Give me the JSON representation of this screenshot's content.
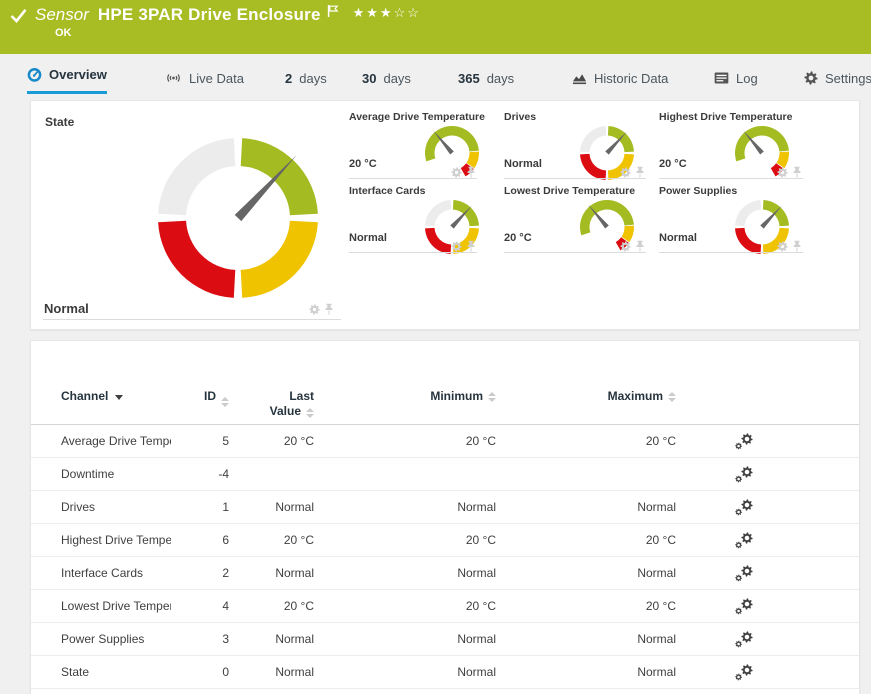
{
  "header": {
    "kind_label": "Sensor",
    "title": "HPE 3PAR Drive Enclosure",
    "status": "OK",
    "rating_stars": "★★★☆☆",
    "bar_color": "#a7bd23"
  },
  "tabs": [
    {
      "id": "overview",
      "icon": "gauge-icon",
      "label": "Overview",
      "active": true
    },
    {
      "id": "live-data",
      "icon": "live-data-icon",
      "label": "Live Data",
      "active": false
    },
    {
      "id": "2-days",
      "number": "2",
      "label": "days",
      "active": false
    },
    {
      "id": "30-days",
      "number": "30",
      "label": "days",
      "active": false
    },
    {
      "id": "365-days",
      "number": "365",
      "label": "days",
      "active": false
    },
    {
      "id": "historic-data",
      "icon": "historic-data-icon",
      "label": "Historic Data",
      "active": false
    },
    {
      "id": "log",
      "icon": "log-icon",
      "label": "Log",
      "active": false
    },
    {
      "id": "settings",
      "icon": "gear-icon",
      "label": "Settings",
      "active": false
    }
  ],
  "gauges": {
    "state": {
      "title": "State",
      "value": "Normal",
      "type": "status"
    },
    "small": [
      {
        "title": "Average Drive Temperature",
        "value": "20 °C",
        "type": "temp"
      },
      {
        "title": "Drives",
        "value": "Normal",
        "type": "status"
      },
      {
        "title": "Highest Drive Temperature",
        "value": "20 °C",
        "type": "temp"
      },
      {
        "title": "Interface Cards",
        "value": "Normal",
        "type": "status"
      },
      {
        "title": "Lowest Drive Temperature",
        "value": "20 °C",
        "type": "temp"
      },
      {
        "title": "Power Supplies",
        "value": "Normal",
        "type": "status"
      }
    ],
    "colors": {
      "green": "#a4bb22",
      "yellow": "#efc300",
      "red": "#dc0d12",
      "gray": "#ececec",
      "needle": "#666666",
      "accent_blue": "#199cd6"
    }
  },
  "table": {
    "columns": {
      "channel": "Channel",
      "id": "ID",
      "last_line1": "Last",
      "last_line2": "Value",
      "min": "Minimum",
      "max": "Maximum"
    },
    "rows": [
      {
        "channel": "Average Drive Temper...",
        "id": "5",
        "last": "20 °C",
        "min": "20 °C",
        "max": "20 °C"
      },
      {
        "channel": "Downtime",
        "id": "-4",
        "last": "",
        "min": "",
        "max": ""
      },
      {
        "channel": "Drives",
        "id": "1",
        "last": "Normal",
        "min": "Normal",
        "max": "Normal"
      },
      {
        "channel": "Highest Drive Temper...",
        "id": "6",
        "last": "20 °C",
        "min": "20 °C",
        "max": "20 °C"
      },
      {
        "channel": "Interface Cards",
        "id": "2",
        "last": "Normal",
        "min": "Normal",
        "max": "Normal"
      },
      {
        "channel": "Lowest Drive Tempera...",
        "id": "4",
        "last": "20 °C",
        "min": "20 °C",
        "max": "20 °C"
      },
      {
        "channel": "Power Supplies",
        "id": "3",
        "last": "Normal",
        "min": "Normal",
        "max": "Normal"
      },
      {
        "channel": "State",
        "id": "0",
        "last": "Normal",
        "min": "Normal",
        "max": "Normal"
      }
    ]
  }
}
